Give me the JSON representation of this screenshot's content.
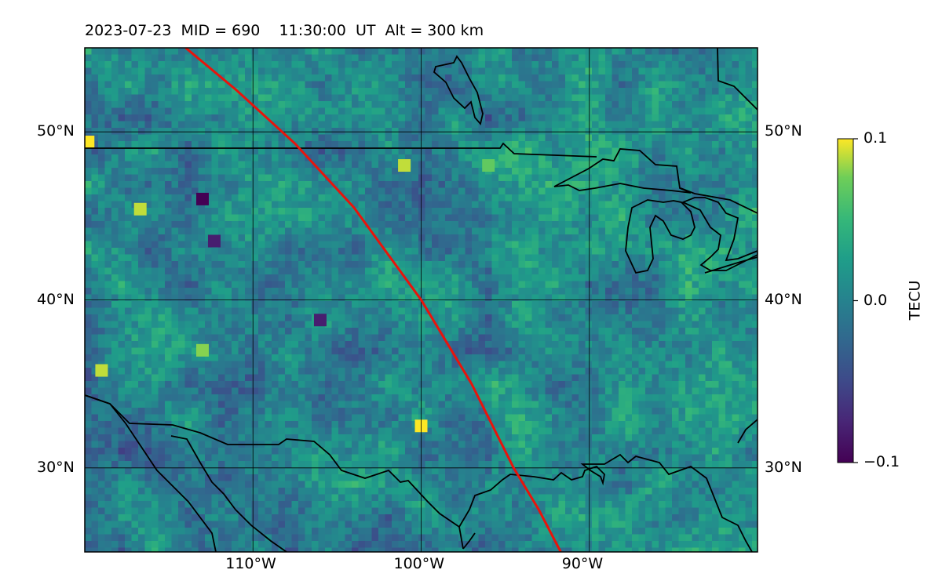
{
  "chart_data": {
    "type": "heatmap",
    "title": "2023-07-23  MID = 690    11:30:00  UT  Alt = 300 km",
    "projection": "map",
    "lon_range": [
      -120,
      -80
    ],
    "lat_range": [
      25,
      55
    ],
    "grid": true,
    "x_ticks": [
      {
        "value": -110,
        "label": "110°W"
      },
      {
        "value": -100,
        "label": "100°W"
      },
      {
        "value": -90,
        "label": "90°W"
      }
    ],
    "y_ticks": [
      {
        "value": 30,
        "label": "30°N"
      },
      {
        "value": 40,
        "label": "40°N"
      },
      {
        "value": 50,
        "label": "50°N"
      }
    ],
    "colorbar": {
      "label": "TECU",
      "vmin": -0.1,
      "vmax": 0.1,
      "colormap": "viridis",
      "ticks": [
        {
          "value": 0.1,
          "label": "0.1"
        },
        {
          "value": 0.0,
          "label": "0.0"
        },
        {
          "value": -0.1,
          "label": "−0.1"
        }
      ]
    },
    "terminator_line": {
      "color": "#e8140c",
      "points": [
        [
          -114,
          55
        ],
        [
          -111,
          52.5
        ],
        [
          -107.5,
          49.3
        ],
        [
          -104,
          45.5
        ],
        [
          -100,
          40
        ],
        [
          -97,
          35
        ],
        [
          -94.5,
          30
        ],
        [
          -93,
          27.5
        ],
        [
          -91.7,
          25
        ]
      ]
    },
    "hotspots": [
      {
        "lon": -119.8,
        "lat": 49.4,
        "value": 0.1
      },
      {
        "lon": -116.7,
        "lat": 45.4,
        "value": 0.09
      },
      {
        "lon": -113,
        "lat": 46,
        "value": -0.1
      },
      {
        "lon": -112.3,
        "lat": 43.5,
        "value": -0.08
      },
      {
        "lon": -106,
        "lat": 38.8,
        "value": -0.08
      },
      {
        "lon": -101,
        "lat": 48,
        "value": 0.09
      },
      {
        "lon": -100,
        "lat": 32.5,
        "value": 0.1
      },
      {
        "lon": -119,
        "lat": 35.8,
        "value": 0.09
      },
      {
        "lon": -113,
        "lat": 37,
        "value": 0.08
      },
      {
        "lon": -96,
        "lat": 48,
        "value": 0.07
      }
    ]
  }
}
